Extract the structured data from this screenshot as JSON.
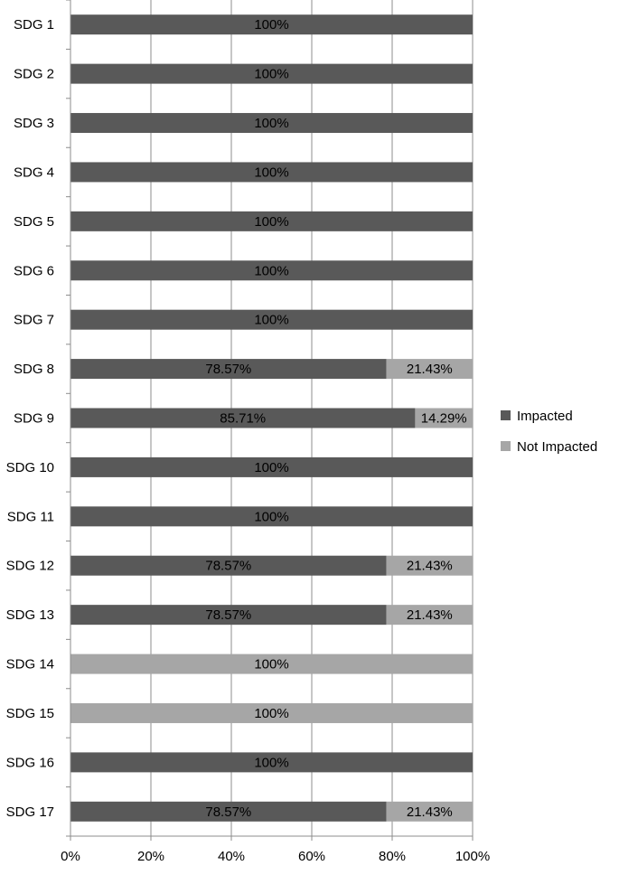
{
  "chart_data": {
    "type": "bar",
    "orientation": "horizontal",
    "stacking": "percent",
    "categories": [
      "SDG 1",
      "SDG 2",
      "SDG 3",
      "SDG 4",
      "SDG 5",
      "SDG 6",
      "SDG 7",
      "SDG 8",
      "SDG 9",
      "SDG 10",
      "SDG 11",
      "SDG 12",
      "SDG 13",
      "SDG 14",
      "SDG 15",
      "SDG 16",
      "SDG 17"
    ],
    "series": [
      {
        "name": "Impacted",
        "color": "#595959",
        "values": [
          100,
          100,
          100,
          100,
          100,
          100,
          100,
          78.57,
          85.71,
          100,
          100,
          78.57,
          78.57,
          0,
          0,
          100,
          78.57
        ],
        "labels": [
          "100%",
          "100%",
          "100%",
          "100%",
          "100%",
          "100%",
          "100%",
          "78.57%",
          "85.71%",
          "100%",
          "100%",
          "78.57%",
          "78.57%",
          "",
          "",
          "100%",
          "78.57%"
        ]
      },
      {
        "name": "Not Impacted",
        "color": "#a6a6a6",
        "values": [
          0,
          0,
          0,
          0,
          0,
          0,
          0,
          21.43,
          14.29,
          0,
          0,
          21.43,
          21.43,
          100,
          100,
          0,
          21.43
        ],
        "labels": [
          "",
          "",
          "",
          "",
          "",
          "",
          "",
          "21.43%",
          "14.29%",
          "",
          "",
          "21.43%",
          "21.43%",
          "100%",
          "100%",
          "",
          "21.43%"
        ]
      }
    ],
    "x_ticks": [
      "0%",
      "20%",
      "40%",
      "60%",
      "80%",
      "100%"
    ],
    "xlim": [
      0,
      100
    ],
    "grid": true,
    "legend_placement": "right",
    "title": "",
    "xlabel": "",
    "ylabel": ""
  }
}
